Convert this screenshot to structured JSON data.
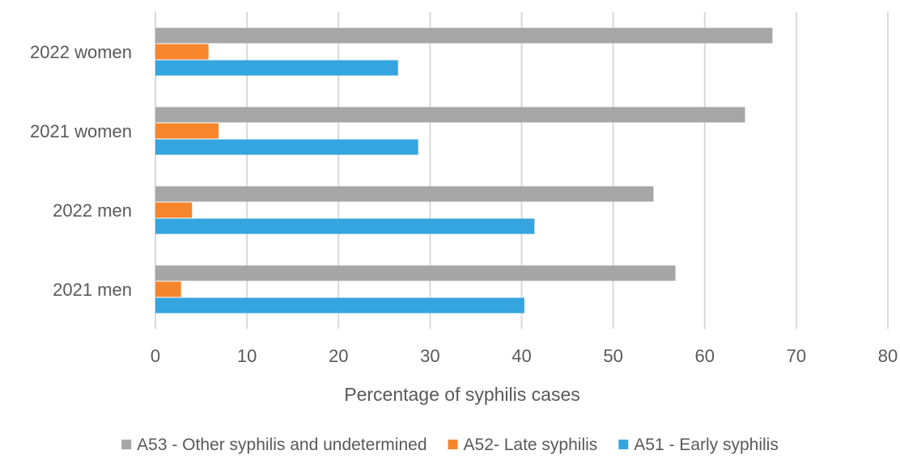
{
  "chart_data": {
    "type": "bar",
    "orientation": "horizontal",
    "categories": [
      "2021 men",
      "2022 men",
      "2021 women",
      "2022 women"
    ],
    "series": [
      {
        "name": "A53 - Other syphilis and undetermined",
        "color": "#a6a6a6",
        "values": [
          56.8,
          54.4,
          64.4,
          67.4
        ]
      },
      {
        "name": "A52- Late syphilis",
        "color": "#f7852c",
        "values": [
          2.8,
          4.0,
          6.9,
          5.8
        ]
      },
      {
        "name": "A51 - Early syphilis",
        "color": "#35a5df",
        "values": [
          40.3,
          41.4,
          28.7,
          26.5
        ]
      }
    ],
    "xlabel": "Percentage of syphilis cases",
    "xlim": [
      0,
      80
    ],
    "xticks": [
      "0",
      "10",
      "20",
      "30",
      "40",
      "50",
      "60",
      "70",
      "80"
    ],
    "grid": "vertical",
    "legend_position": "bottom"
  }
}
